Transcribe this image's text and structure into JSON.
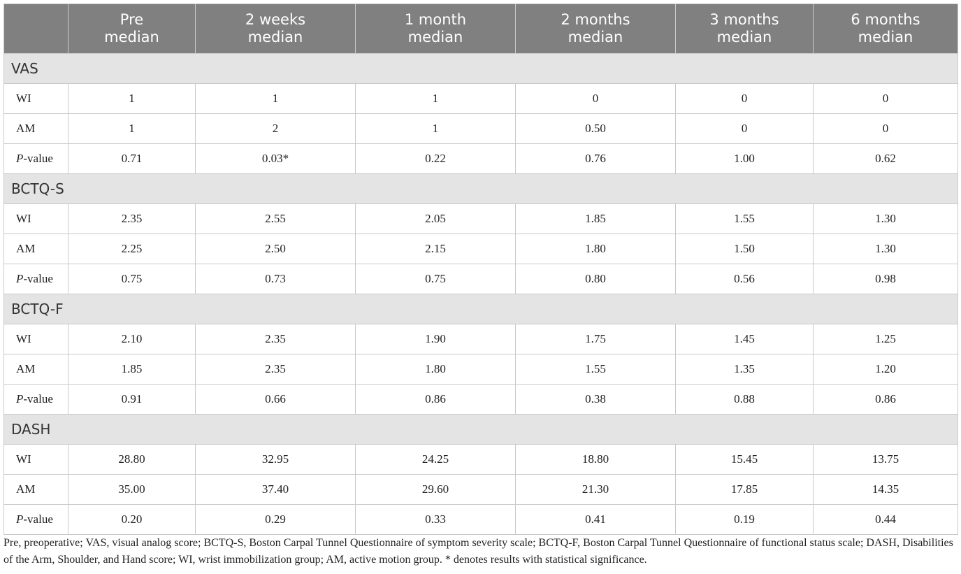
{
  "table": {
    "columns": [
      {
        "line1": "",
        "line2": ""
      },
      {
        "line1": "Pre",
        "line2": "median"
      },
      {
        "line1": "2 weeks",
        "line2": "median"
      },
      {
        "line1": "1 month",
        "line2": "median"
      },
      {
        "line1": "2 months",
        "line2": "median"
      },
      {
        "line1": "3 months",
        "line2": "median"
      },
      {
        "line1": "6 months",
        "line2": "median"
      }
    ],
    "sections": [
      {
        "title": "VAS",
        "rows": [
          {
            "label": "WI",
            "values": [
              "1",
              "1",
              "1",
              "0",
              "0",
              "0"
            ]
          },
          {
            "label": "AM",
            "values": [
              "1",
              "2",
              "1",
              "0.50",
              "0",
              "0"
            ]
          },
          {
            "label_italic": "P",
            "label": "-value",
            "values": [
              "0.71",
              "0.03*",
              "0.22",
              "0.76",
              "1.00",
              "0.62"
            ]
          }
        ]
      },
      {
        "title": "BCTQ-S",
        "rows": [
          {
            "label": "WI",
            "values": [
              "2.35",
              "2.55",
              "2.05",
              "1.85",
              "1.55",
              "1.30"
            ]
          },
          {
            "label": "AM",
            "values": [
              "2.25",
              "2.50",
              "2.15",
              "1.80",
              "1.50",
              "1.30"
            ]
          },
          {
            "label_italic": "P",
            "label": "-value",
            "values": [
              "0.75",
              "0.73",
              "0.75",
              "0.80",
              "0.56",
              "0.98"
            ]
          }
        ]
      },
      {
        "title": "BCTQ-F",
        "rows": [
          {
            "label": "WI",
            "values": [
              "2.10",
              "2.35",
              "1.90",
              "1.75",
              "1.45",
              "1.25"
            ]
          },
          {
            "label": "AM",
            "values": [
              "1.85",
              "2.35",
              "1.80",
              "1.55",
              "1.35",
              "1.20"
            ]
          },
          {
            "label_italic": "P",
            "label": "-value",
            "values": [
              "0.91",
              "0.66",
              "0.86",
              "0.38",
              "0.88",
              "0.86"
            ]
          }
        ]
      },
      {
        "title": "DASH",
        "rows": [
          {
            "label": "WI",
            "values": [
              "28.80",
              "32.95",
              "24.25",
              "18.80",
              "15.45",
              "13.75"
            ]
          },
          {
            "label": "AM",
            "values": [
              "35.00",
              "37.40",
              "29.60",
              "21.30",
              "17.85",
              "14.35"
            ]
          },
          {
            "label_italic": "P",
            "label": "-value",
            "values": [
              "0.20",
              "0.29",
              "0.33",
              "0.41",
              "0.19",
              "0.44"
            ]
          }
        ]
      }
    ]
  },
  "footnote": "Pre, preoperative; VAS, visual analog score; BCTQ-S, Boston Carpal Tunnel Questionnaire of symptom severity scale; BCTQ-F, Boston Carpal Tunnel Questionnaire of functional status scale; DASH, Disabilities of the Arm, Shoulder, and Hand score; WI, wrist immobilization group; AM, active motion group. * denotes results with statistical significance.",
  "colors": {
    "header_bg": "#808080",
    "section_bg": "#e4e4e4",
    "border": "#c9c9c9"
  }
}
